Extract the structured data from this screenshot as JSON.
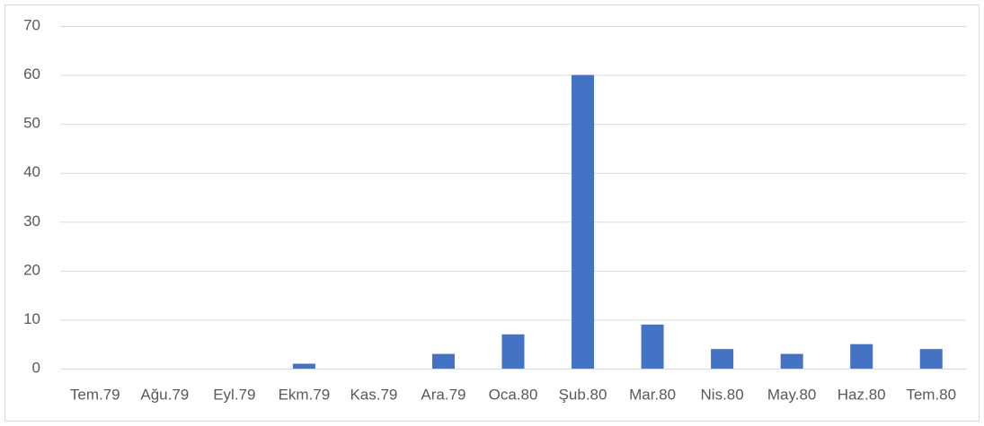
{
  "chart_data": {
    "type": "bar",
    "categories": [
      "Tem.79",
      "Ağu.79",
      "Eyl.79",
      "Ekm.79",
      "Kas.79",
      "Ara.79",
      "Oca.80",
      "Şub.80",
      "Mar.80",
      "Nis.80",
      "May.80",
      "Haz.80",
      "Tem.80"
    ],
    "values": [
      0,
      0,
      0,
      1,
      0,
      3,
      7,
      60,
      9,
      4,
      3,
      5,
      4
    ],
    "color": "#4472c4",
    "ylim": [
      0,
      70
    ],
    "yticks": [
      0,
      10,
      20,
      30,
      40,
      50,
      60,
      70
    ],
    "grid": true
  }
}
